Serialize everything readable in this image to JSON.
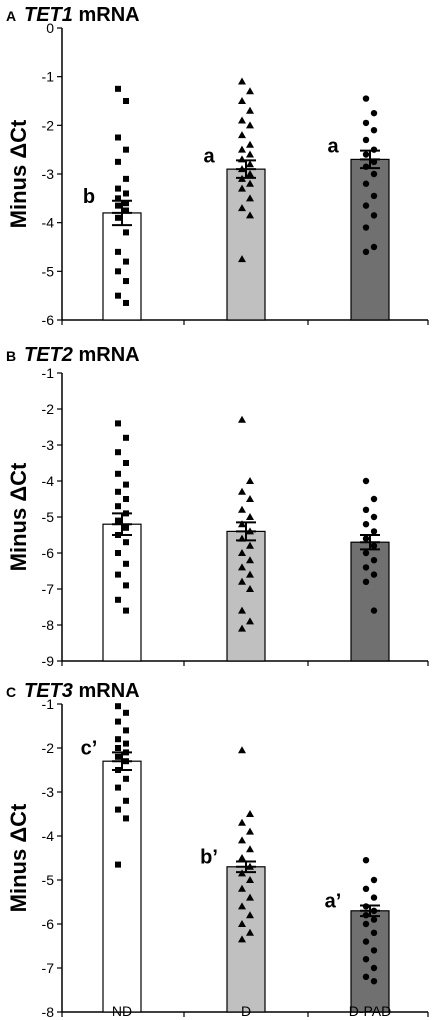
{
  "colors": {
    "ND": "#ffffff",
    "D": "#c0c0c0",
    "D-PAD": "#707070",
    "outline": "#000000"
  },
  "chart_data": [
    {
      "type": "bar",
      "panel_letter": "A",
      "title_gene": "TET1",
      "title_suffix": " mRNA",
      "ylabel": "Minus ΔCt",
      "ylim": [
        -6,
        0
      ],
      "yticks": [
        0,
        -1,
        -2,
        -3,
        -4,
        -5,
        -6
      ],
      "categories": [
        "ND",
        "D",
        "D-PAD"
      ],
      "values": [
        -3.8,
        -2.9,
        -2.7
      ],
      "sem": [
        0.25,
        0.18,
        0.18
      ],
      "significance": [
        "b",
        "a",
        "a"
      ],
      "marker": [
        "square",
        "triangle",
        "circle"
      ],
      "points": [
        [
          -1.25,
          -1.5,
          -2.25,
          -2.5,
          -2.75,
          -3.1,
          -3.3,
          -3.4,
          -3.5,
          -3.6,
          -3.65,
          -3.75,
          -3.9,
          -4.2,
          -4.6,
          -4.8,
          -5.0,
          -5.2,
          -5.5,
          -5.65
        ],
        [
          -1.1,
          -1.3,
          -1.5,
          -1.7,
          -1.9,
          -2.0,
          -2.2,
          -2.4,
          -2.5,
          -2.6,
          -2.7,
          -2.8,
          -2.9,
          -3.0,
          -3.1,
          -3.2,
          -3.3,
          -3.5,
          -3.7,
          -3.85,
          -4.75
        ],
        [
          -1.45,
          -1.75,
          -1.95,
          -2.1,
          -2.3,
          -2.5,
          -2.6,
          -2.75,
          -2.85,
          -3.0,
          -3.2,
          -3.45,
          -3.65,
          -3.85,
          -4.1,
          -4.5,
          -4.6
        ]
      ]
    },
    {
      "type": "bar",
      "panel_letter": "B",
      "title_gene": "TET2",
      "title_suffix": " mRNA",
      "ylabel": "Minus ΔCt",
      "ylim": [
        -9,
        -1
      ],
      "yticks": [
        -1,
        -2,
        -3,
        -4,
        -5,
        -6,
        -7,
        -8,
        -9
      ],
      "categories": [
        "ND",
        "D",
        "D-PAD"
      ],
      "values": [
        -5.2,
        -5.4,
        -5.7
      ],
      "sem": [
        0.3,
        0.25,
        0.2
      ],
      "significance": [
        "",
        "",
        ""
      ],
      "marker": [
        "square",
        "triangle",
        "circle"
      ],
      "points": [
        [
          -2.4,
          -2.8,
          -3.2,
          -3.5,
          -3.8,
          -4.1,
          -4.3,
          -4.5,
          -4.7,
          -4.9,
          -5.1,
          -5.3,
          -5.5,
          -5.7,
          -6.0,
          -6.3,
          -6.6,
          -6.9,
          -7.3,
          -7.6
        ],
        [
          -2.3,
          -4.0,
          -4.3,
          -4.5,
          -4.8,
          -5.0,
          -5.2,
          -5.4,
          -5.6,
          -5.8,
          -6.0,
          -6.2,
          -6.4,
          -6.6,
          -6.8,
          -7.0,
          -7.6,
          -7.9,
          -8.1
        ],
        [
          -4.0,
          -4.5,
          -4.8,
          -5.0,
          -5.2,
          -5.4,
          -5.6,
          -5.8,
          -6.0,
          -6.2,
          -6.4,
          -6.6,
          -6.8,
          -7.6
        ]
      ]
    },
    {
      "type": "bar",
      "panel_letter": "C",
      "title_gene": "TET3",
      "title_suffix": " mRNA",
      "ylabel": "Minus ΔCt",
      "ylim": [
        -8,
        -1
      ],
      "yticks": [
        -1,
        -2,
        -3,
        -4,
        -5,
        -6,
        -7,
        -8
      ],
      "categories": [
        "ND",
        "D",
        "D-PAD"
      ],
      "values": [
        -2.3,
        -4.7,
        -5.7
      ],
      "sem": [
        0.2,
        0.12,
        0.12
      ],
      "significance": [
        "c’",
        "b’",
        "a’"
      ],
      "marker": [
        "square",
        "triangle",
        "circle"
      ],
      "points": [
        [
          -1.05,
          -1.2,
          -1.4,
          -1.6,
          -1.8,
          -1.9,
          -2.0,
          -2.1,
          -2.2,
          -2.3,
          -2.5,
          -2.7,
          -2.9,
          -3.2,
          -3.4,
          -3.6,
          -4.65
        ],
        [
          -2.05,
          -3.5,
          -3.7,
          -3.9,
          -4.1,
          -4.3,
          -4.5,
          -4.7,
          -4.85,
          -5.0,
          -5.2,
          -5.4,
          -5.6,
          -5.8,
          -6.0,
          -6.2,
          -6.35
        ],
        [
          -4.55,
          -5.0,
          -5.2,
          -5.4,
          -5.6,
          -5.7,
          -5.8,
          -5.9,
          -6.0,
          -6.2,
          -6.4,
          -6.6,
          -6.8,
          -7.0,
          -7.2,
          -7.3
        ]
      ]
    }
  ]
}
